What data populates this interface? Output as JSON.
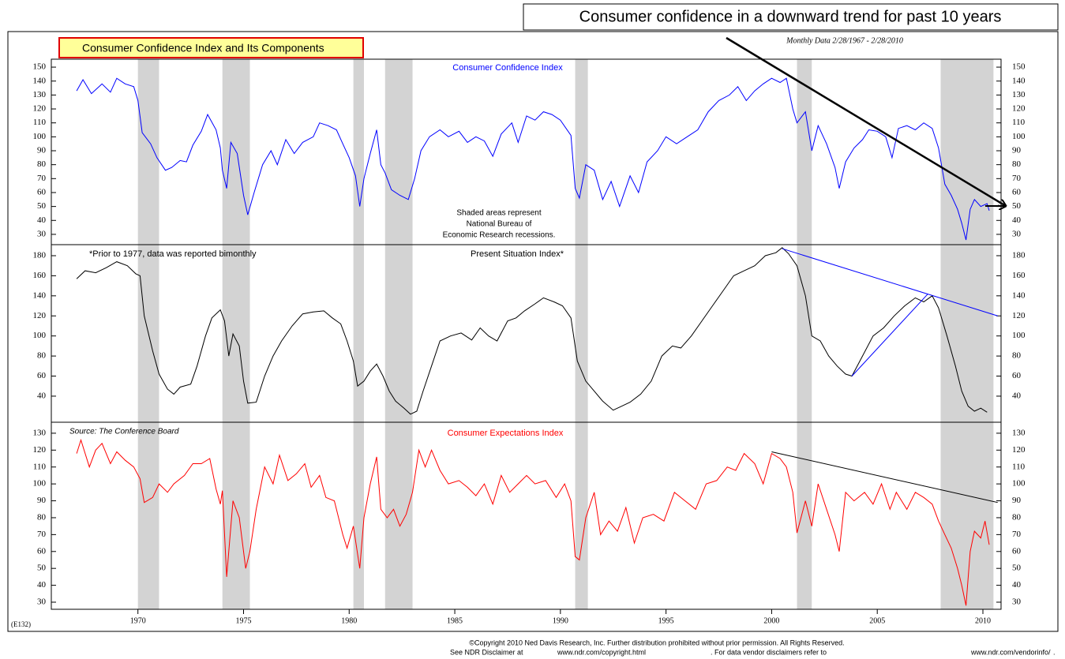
{
  "annotation": "Consumer confidence in a downward trend for past 10 years",
  "title": "Consumer Confidence Index and Its Components",
  "subtitle": "Monthly Data 2/28/1967 - 2/28/2010",
  "code": "(E132)",
  "footer": [
    "©Copyright 2010 Ned Davis Research, Inc.  Further distribution prohibited without prior permission.  All Rights Reserved.",
    "See NDR Disclaimer at",
    "www.ndr.com/copyright.html",
    ". For data vendor disclaimers refer to",
    "www.ndr.com/vendorinfo/",
    "."
  ],
  "recessions": [
    [
      1970.0,
      1971.0
    ],
    [
      1974.0,
      1975.3
    ],
    [
      1980.2,
      1980.7
    ],
    [
      1981.7,
      1983.0
    ],
    [
      1990.7,
      1991.3
    ],
    [
      2001.2,
      2001.9
    ],
    [
      2008.0,
      2010.5
    ]
  ],
  "chart_data": [
    {
      "type": "line",
      "title": "Consumer Confidence Index",
      "note": [
        "Shaded areas represent",
        "National Bureau of",
        "Economic Research recessions."
      ],
      "color": "#0000ff",
      "xlim": [
        1965.9,
        2010.86
      ],
      "ylim": [
        22.6,
        155.7
      ],
      "yticks": [
        30,
        40,
        50,
        60,
        70,
        80,
        90,
        100,
        110,
        120,
        130,
        140,
        150
      ],
      "x": [
        1967.1,
        1967.4,
        1967.8,
        1968.3,
        1968.7,
        1969.0,
        1969.4,
        1969.8,
        1970.0,
        1970.2,
        1970.6,
        1970.9,
        1971.3,
        1971.6,
        1972.0,
        1972.3,
        1972.6,
        1973.0,
        1973.3,
        1973.7,
        1973.9,
        1974.0,
        1974.2,
        1974.4,
        1974.7,
        1975.0,
        1975.2,
        1975.5,
        1975.9,
        1976.3,
        1976.6,
        1977.0,
        1977.4,
        1977.8,
        1978.3,
        1978.6,
        1979.0,
        1979.4,
        1979.7,
        1980.0,
        1980.3,
        1980.5,
        1980.7,
        1981.0,
        1981.3,
        1981.5,
        1981.7,
        1982.0,
        1982.4,
        1982.8,
        1983.1,
        1983.4,
        1983.8,
        1984.3,
        1984.7,
        1985.2,
        1985.6,
        1986.0,
        1986.4,
        1986.8,
        1987.2,
        1987.7,
        1988.0,
        1988.4,
        1988.8,
        1989.2,
        1989.6,
        1990.0,
        1990.5,
        1990.7,
        1990.9,
        1991.2,
        1991.6,
        1992.0,
        1992.4,
        1992.8,
        1993.3,
        1993.7,
        1994.1,
        1994.6,
        1995.0,
        1995.5,
        1996.0,
        1996.5,
        1997.0,
        1997.5,
        1998.0,
        1998.4,
        1998.8,
        1999.2,
        1999.6,
        2000.0,
        2000.4,
        2000.7,
        2001.0,
        2001.2,
        2001.6,
        2001.9,
        2002.2,
        2002.6,
        2003.0,
        2003.2,
        2003.5,
        2003.9,
        2004.3,
        2004.6,
        2005.0,
        2005.4,
        2005.7,
        2006.0,
        2006.4,
        2006.8,
        2007.2,
        2007.6,
        2007.9,
        2008.2,
        2008.5,
        2008.8,
        2009.0,
        2009.2,
        2009.4,
        2009.6,
        2009.9,
        2010.2,
        2010.3
      ],
      "values": [
        133,
        141,
        131,
        138,
        132,
        142,
        138,
        136,
        126,
        103,
        95,
        85,
        76,
        78,
        83,
        82,
        94,
        104,
        116,
        105,
        92,
        76,
        63,
        96,
        88,
        58,
        44,
        60,
        80,
        90,
        80,
        98,
        88,
        96,
        100,
        110,
        108,
        105,
        95,
        85,
        72,
        50,
        70,
        88,
        105,
        80,
        74,
        62,
        58,
        55,
        70,
        90,
        100,
        105,
        100,
        104,
        96,
        100,
        97,
        86,
        102,
        110,
        96,
        115,
        112,
        118,
        116,
        112,
        101,
        63,
        56,
        80,
        76,
        55,
        68,
        50,
        72,
        60,
        82,
        90,
        100,
        95,
        100,
        105,
        118,
        126,
        130,
        136,
        126,
        133,
        138,
        142,
        139,
        142,
        120,
        110,
        118,
        90,
        108,
        95,
        78,
        63,
        82,
        92,
        98,
        105,
        104,
        100,
        85,
        106,
        108,
        105,
        110,
        106,
        92,
        66,
        58,
        48,
        38,
        26,
        48,
        55,
        50,
        52,
        47
      ]
    },
    {
      "type": "line",
      "title": "Present Situation Index*",
      "note": "*Prior to 1977, data was reported bimonthly",
      "color": "#000000",
      "xlim": [
        1965.9,
        2010.86
      ],
      "ylim": [
        14,
        191
      ],
      "yticks": [
        40,
        60,
        80,
        100,
        120,
        140,
        160,
        180
      ],
      "x": [
        1967.1,
        1967.5,
        1968.0,
        1968.5,
        1969.0,
        1969.5,
        1969.9,
        1970.1,
        1970.3,
        1970.7,
        1971.0,
        1971.4,
        1971.7,
        1972.0,
        1972.5,
        1972.8,
        1973.2,
        1973.5,
        1973.9,
        1974.1,
        1974.3,
        1974.5,
        1974.8,
        1975.0,
        1975.2,
        1975.6,
        1976.0,
        1976.4,
        1976.8,
        1977.3,
        1977.8,
        1978.3,
        1978.8,
        1979.2,
        1979.6,
        1979.9,
        1980.2,
        1980.4,
        1980.7,
        1981.0,
        1981.3,
        1981.6,
        1981.9,
        1982.2,
        1982.6,
        1982.9,
        1983.2,
        1983.5,
        1983.9,
        1984.3,
        1984.8,
        1985.3,
        1985.8,
        1986.2,
        1986.6,
        1987.0,
        1987.5,
        1987.9,
        1988.3,
        1988.8,
        1989.2,
        1989.7,
        1990.1,
        1990.5,
        1990.8,
        1991.2,
        1991.6,
        1992.0,
        1992.5,
        1992.9,
        1993.3,
        1993.8,
        1994.3,
        1994.8,
        1995.3,
        1995.7,
        1996.2,
        1996.7,
        1997.2,
        1997.7,
        1998.2,
        1998.7,
        1999.2,
        1999.7,
        2000.2,
        2000.5,
        2000.8,
        2001.2,
        2001.6,
        2001.9,
        2002.3,
        2002.7,
        2003.1,
        2003.5,
        2003.8,
        2004.3,
        2004.8,
        2005.3,
        2005.8,
        2006.3,
        2006.8,
        2007.2,
        2007.6,
        2007.9,
        2008.3,
        2008.7,
        2009.0,
        2009.3,
        2009.6,
        2009.9,
        2010.2
      ],
      "values": [
        157,
        165,
        163,
        168,
        174,
        170,
        162,
        160,
        120,
        85,
        62,
        47,
        42,
        49,
        52,
        70,
        100,
        118,
        126,
        115,
        80,
        102,
        90,
        55,
        33,
        34,
        60,
        80,
        95,
        110,
        122,
        124,
        125,
        118,
        112,
        95,
        75,
        50,
        55,
        65,
        72,
        60,
        45,
        35,
        28,
        22,
        25,
        45,
        70,
        95,
        100,
        103,
        96,
        108,
        100,
        95,
        115,
        118,
        125,
        132,
        138,
        134,
        130,
        118,
        75,
        55,
        45,
        35,
        26,
        30,
        34,
        42,
        55,
        80,
        90,
        88,
        100,
        115,
        130,
        145,
        160,
        165,
        170,
        180,
        183,
        188,
        182,
        170,
        140,
        100,
        95,
        80,
        70,
        62,
        60,
        80,
        100,
        108,
        120,
        130,
        138,
        134,
        140,
        128,
        100,
        70,
        45,
        30,
        25,
        28,
        24
      ],
      "trendlines": [
        {
          "color": "#0000ff",
          "x": [
            2000.5,
            2010.7
          ],
          "values": [
            187,
            120
          ]
        },
        {
          "color": "#0000ff",
          "x": [
            2003.8,
            2007.4
          ],
          "values": [
            60,
            142
          ]
        }
      ]
    },
    {
      "type": "line",
      "title": "Consumer Expectations Index",
      "note": "Source: The Conference Board",
      "color": "#ff0000",
      "xlim": [
        1965.9,
        2010.86
      ],
      "ylim": [
        25.8,
        136.5
      ],
      "yticks": [
        30,
        40,
        50,
        60,
        70,
        80,
        90,
        100,
        110,
        120,
        130
      ],
      "xticks": [
        1970,
        1975,
        1980,
        1985,
        1990,
        1995,
        2000,
        2005,
        2010
      ],
      "x": [
        1967.1,
        1967.3,
        1967.7,
        1968.0,
        1968.3,
        1968.7,
        1969.0,
        1969.4,
        1969.8,
        1970.1,
        1970.3,
        1970.7,
        1971.0,
        1971.4,
        1971.7,
        1972.2,
        1972.6,
        1973.0,
        1973.4,
        1973.7,
        1973.9,
        1974.0,
        1974.2,
        1974.5,
        1974.8,
        1975.1,
        1975.3,
        1975.6,
        1976.0,
        1976.4,
        1976.7,
        1977.1,
        1977.5,
        1977.9,
        1978.2,
        1978.6,
        1978.9,
        1979.3,
        1979.7,
        1979.9,
        1980.2,
        1980.5,
        1980.7,
        1981.0,
        1981.3,
        1981.5,
        1981.8,
        1982.1,
        1982.4,
        1982.7,
        1983.0,
        1983.3,
        1983.6,
        1983.9,
        1984.3,
        1984.7,
        1985.2,
        1985.6,
        1986.0,
        1986.4,
        1986.8,
        1987.2,
        1987.6,
        1988.0,
        1988.4,
        1988.8,
        1989.3,
        1989.8,
        1990.2,
        1990.5,
        1990.7,
        1990.9,
        1991.2,
        1991.6,
        1991.9,
        1992.3,
        1992.7,
        1993.1,
        1993.5,
        1993.9,
        1994.4,
        1994.9,
        1995.4,
        1995.9,
        1996.4,
        1996.9,
        1997.4,
        1997.9,
        1998.3,
        1998.7,
        1999.2,
        1999.6,
        2000.0,
        2000.4,
        2000.7,
        2001.0,
        2001.2,
        2001.6,
        2001.9,
        2002.2,
        2002.6,
        2003.0,
        2003.2,
        2003.5,
        2003.9,
        2004.4,
        2004.8,
        2005.2,
        2005.6,
        2005.9,
        2006.4,
        2006.8,
        2007.2,
        2007.6,
        2007.9,
        2008.2,
        2008.5,
        2008.8,
        2009.0,
        2009.2,
        2009.4,
        2009.6,
        2009.9,
        2010.1,
        2010.3
      ],
      "values": [
        118,
        126,
        110,
        120,
        124,
        112,
        119,
        114,
        110,
        103,
        89,
        92,
        100,
        95,
        100,
        105,
        112,
        112,
        115,
        97,
        88,
        96,
        45,
        90,
        80,
        50,
        60,
        85,
        110,
        100,
        117,
        102,
        106,
        112,
        98,
        105,
        92,
        90,
        70,
        62,
        75,
        50,
        80,
        100,
        116,
        85,
        80,
        85,
        75,
        82,
        95,
        120,
        110,
        120,
        108,
        100,
        102,
        98,
        93,
        100,
        88,
        105,
        95,
        100,
        105,
        100,
        102,
        92,
        100,
        90,
        57,
        55,
        80,
        95,
        70,
        78,
        72,
        86,
        65,
        80,
        82,
        78,
        95,
        90,
        85,
        100,
        102,
        110,
        108,
        118,
        112,
        100,
        118,
        115,
        110,
        95,
        71,
        90,
        75,
        100,
        85,
        70,
        60,
        95,
        90,
        95,
        88,
        100,
        85,
        95,
        85,
        95,
        92,
        88,
        78,
        70,
        62,
        50,
        40,
        28,
        60,
        72,
        68,
        78,
        64
      ],
      "trendlines": [
        {
          "color": "#000000",
          "x": [
            2000.0,
            2010.7
          ],
          "values": [
            119,
            89
          ]
        }
      ]
    }
  ]
}
